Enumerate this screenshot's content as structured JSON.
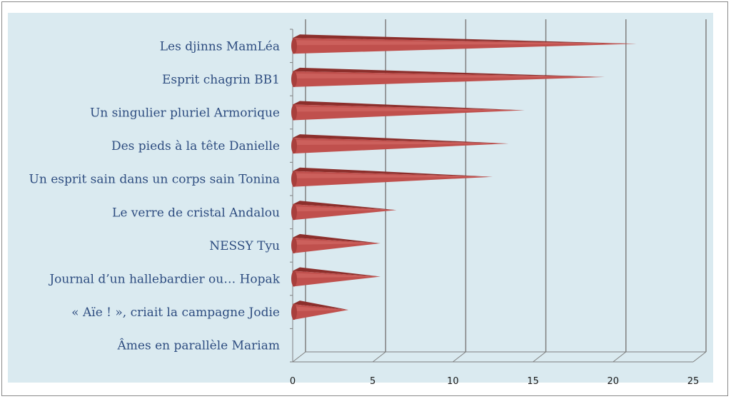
{
  "chart_data": {
    "type": "bar",
    "orientation": "horizontal",
    "style": "3d-cone",
    "categories": [
      "Les djinns MamLéa",
      "Esprit chagrin BB1",
      "Un singulier pluriel Armorique",
      "Des pieds à la tête Danielle",
      "Un esprit sain dans un corps sain Tonina",
      "Le verre de cristal  Andalou",
      "NESSY Tyu",
      "Journal d’un hallebardier ou… Hopak",
      "« Aïe ! », criait la campagne Jodie",
      "Âmes en parallèle Mariam"
    ],
    "values": [
      21,
      19,
      14,
      13,
      12,
      6,
      5,
      5,
      3,
      0
    ],
    "xlim": [
      0,
      25
    ],
    "xticks": [
      "0",
      "5",
      "10",
      "15",
      "20",
      "25"
    ],
    "title": "",
    "xlabel": "",
    "ylabel": "",
    "grid": true,
    "colors": {
      "bar": "#c0504d",
      "bar_top": "#8c2e2b",
      "plot_background": "#daeaf0",
      "gridline": "#7f7f7f",
      "label_text": "#2e4d80"
    }
  }
}
